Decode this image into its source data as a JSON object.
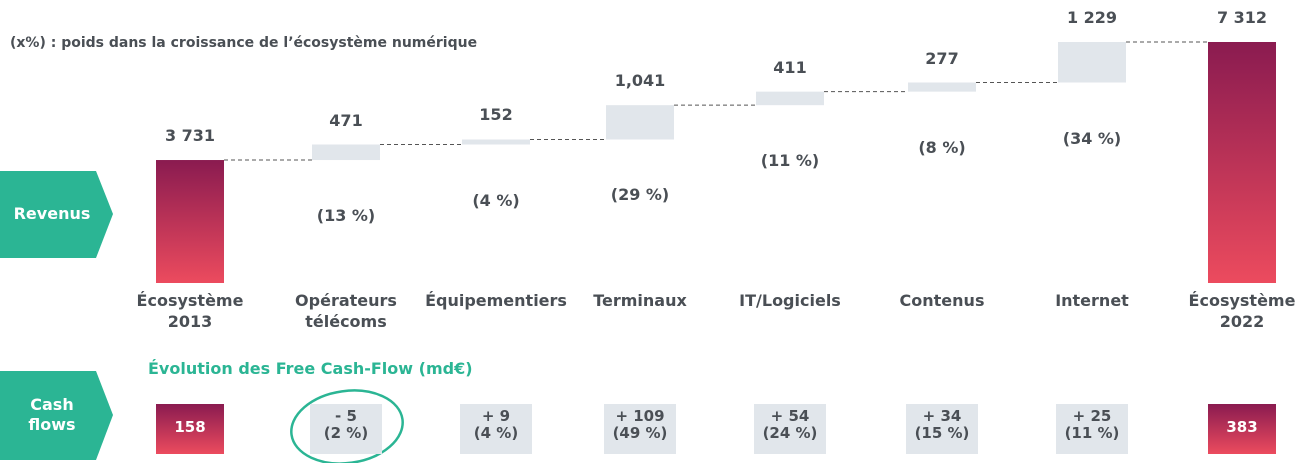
{
  "chart_data": {
    "type": "waterfall",
    "note": "(x%) : poids dans la croissance de l’écosystème numérique",
    "row_label": "Revenus",
    "categories": [
      "Écosystème\n2013",
      "Opérateurs\ntélécoms",
      "Équipementiers",
      "Terminaux",
      "IT/Logiciels",
      "Contenus",
      "Internet",
      "Écosystème\n2022"
    ],
    "kinds": [
      "total",
      "delta",
      "delta",
      "delta",
      "delta",
      "delta",
      "delta",
      "total"
    ],
    "values": [
      3731,
      471,
      152,
      1041,
      411,
      277,
      1229,
      7312
    ],
    "value_labels": [
      "3 731",
      "471",
      "152",
      "1,041",
      "411",
      "277",
      "1 229",
      "7 312"
    ],
    "share_labels": [
      null,
      "(13 %)",
      "(4 %)",
      "(29 %)",
      "(11 %)",
      "(8 %)",
      "(34 %)",
      null
    ],
    "total_colors": [
      "#8a1b50",
      "#ec4b5e"
    ],
    "delta_color": "#e1e6eb"
  },
  "cash_flow": {
    "title": "Évolution des Free Cash-Flow (md€)",
    "row_label": "Cash\nflows",
    "values": [
      158,
      -5,
      9,
      109,
      54,
      34,
      25,
      383
    ],
    "value_labels": [
      "158",
      "- 5",
      "+ 9",
      "+ 109",
      "+ 54",
      "+ 34",
      "+ 25",
      "383"
    ],
    "share_labels": [
      null,
      "(2 %)",
      "(4 %)",
      "(49 %)",
      "(24 %)",
      "(15 %)",
      "(11 %)",
      null
    ]
  }
}
